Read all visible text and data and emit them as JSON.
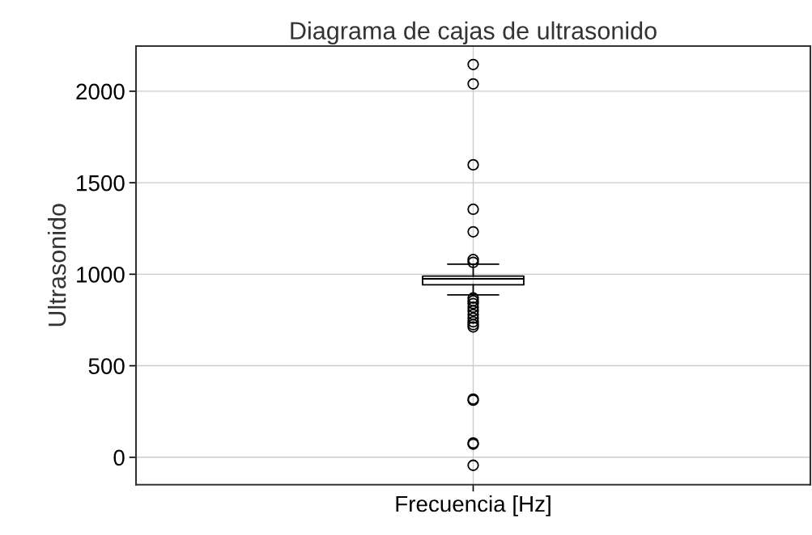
{
  "chart_data": {
    "type": "box",
    "title": "Diagrama de cajas de ultrasonido",
    "ylabel": "Ultrasonido",
    "categories": [
      "Frecuencia [Hz]"
    ],
    "boxes": [
      {
        "low": 887,
        "q1": 942,
        "median": 975,
        "q3": 990,
        "high": 1055,
        "outliers": [
          2146,
          2040,
          1598,
          1355,
          1232,
          1080,
          1065,
          870,
          855,
          840,
          820,
          800,
          780,
          760,
          740,
          725,
          712,
          318,
          312,
          78,
          72,
          -44
        ]
      }
    ],
    "ylim": [
      -150,
      2247
    ],
    "yticks": [
      0,
      500,
      1000,
      1500,
      2000
    ],
    "grid": true,
    "color": "#000000"
  }
}
